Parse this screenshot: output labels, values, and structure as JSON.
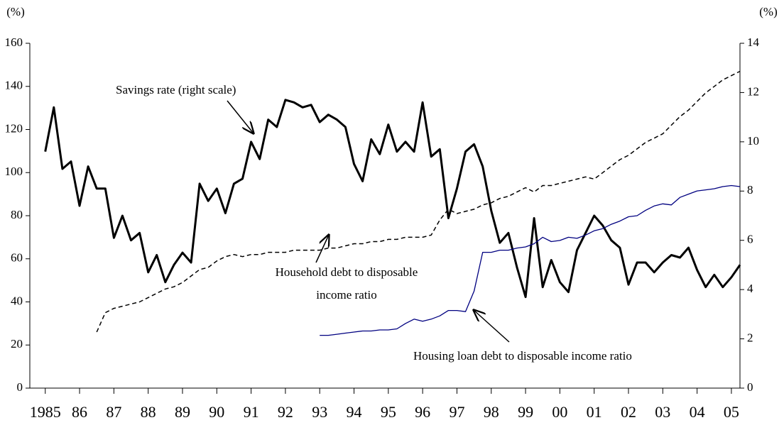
{
  "chart_data": {
    "type": "line",
    "y_label": "(%)",
    "y2_label": "(%)",
    "x": [
      1985,
      1985.25,
      1985.5,
      1985.75,
      1986,
      1986.25,
      1986.5,
      1986.75,
      1987,
      1987.25,
      1987.5,
      1987.75,
      1988,
      1988.25,
      1988.5,
      1988.75,
      1989,
      1989.25,
      1989.5,
      1989.75,
      1990,
      1990.25,
      1990.5,
      1990.75,
      1991,
      1991.25,
      1991.5,
      1991.75,
      1992,
      1992.25,
      1992.5,
      1992.75,
      1993,
      1993.25,
      1993.5,
      1993.75,
      1994,
      1994.25,
      1994.5,
      1994.75,
      1995,
      1995.25,
      1995.5,
      1995.75,
      1996,
      1996.25,
      1996.5,
      1996.75,
      1997,
      1997.25,
      1997.5,
      1997.75,
      1998,
      1998.25,
      1998.5,
      1998.75,
      1999,
      1999.25,
      1999.5,
      1999.75,
      2000,
      2000.25,
      2000.5,
      2000.75,
      2001,
      2001.25,
      2001.5,
      2001.75,
      2002,
      2002.25,
      2002.5,
      2002.75,
      2003,
      2003.25,
      2003.5,
      2003.75,
      2004,
      2004.25,
      2004.5,
      2004.75,
      2005,
      2005.25
    ],
    "series": [
      {
        "name": "Savings rate (right scale)",
        "color": "#000000",
        "axis": "y2",
        "style": "solid",
        "width": 3,
        "values": [
          9.6,
          11.4,
          8.9,
          9.2,
          7.4,
          9.0,
          8.1,
          8.1,
          6.1,
          7.0,
          6.0,
          6.3,
          4.7,
          5.4,
          4.3,
          5.0,
          5.5,
          5.1,
          8.3,
          7.6,
          8.1,
          7.1,
          8.3,
          8.5,
          10.0,
          9.3,
          10.9,
          10.6,
          11.7,
          11.6,
          11.4,
          11.5,
          10.8,
          11.1,
          10.9,
          10.6,
          9.1,
          8.4,
          10.1,
          9.5,
          10.7,
          9.6,
          10.0,
          9.6,
          11.6,
          9.4,
          9.7,
          6.9,
          8.1,
          9.6,
          9.9,
          9.0,
          7.2,
          5.9,
          6.3,
          4.9,
          3.7,
          6.9,
          4.1,
          5.2,
          4.3,
          3.9,
          5.6,
          6.3,
          7.0,
          6.6,
          6.0,
          5.7,
          4.2,
          5.1,
          5.1,
          4.7,
          5.1,
          5.4,
          5.3,
          5.7,
          4.8,
          4.1,
          4.6,
          4.1,
          4.5,
          5.0
        ]
      },
      {
        "name": "Household debt to disposable income ratio",
        "color": "#000000",
        "style": "dashed",
        "width": 1.5,
        "values": [
          null,
          null,
          null,
          null,
          null,
          null,
          26,
          35,
          37,
          38,
          39,
          40,
          42,
          44,
          46,
          47,
          49,
          52,
          55,
          56,
          59,
          61,
          62,
          61,
          62,
          62,
          63,
          63,
          63,
          64,
          64,
          64,
          64,
          65,
          65,
          66,
          67,
          67,
          68,
          68,
          69,
          69,
          70,
          70,
          70,
          71,
          78,
          83,
          81,
          82,
          83,
          85,
          86,
          88,
          89,
          91,
          93,
          91,
          94,
          94,
          95,
          96,
          97,
          98,
          97,
          100,
          103,
          106,
          108,
          111,
          114,
          116,
          118,
          122,
          126,
          129,
          133,
          137,
          140,
          143,
          145,
          147
        ]
      },
      {
        "name": "Housing loan debt to disposable income ratio",
        "color": "#000080",
        "style": "solid",
        "width": 1.3,
        "values": [
          null,
          null,
          null,
          null,
          null,
          null,
          null,
          null,
          null,
          null,
          null,
          null,
          null,
          null,
          null,
          null,
          null,
          null,
          null,
          null,
          null,
          null,
          null,
          null,
          null,
          null,
          null,
          null,
          null,
          null,
          null,
          null,
          24.5,
          24.5,
          25,
          25.5,
          26,
          26.5,
          26.5,
          27,
          27,
          27.5,
          30,
          32,
          31,
          32,
          33.5,
          36,
          36,
          35.5,
          45,
          63,
          63,
          64,
          64,
          65,
          65.5,
          67,
          70,
          68,
          68.5,
          70,
          69.5,
          71,
          73,
          74,
          76,
          77.5,
          79.5,
          80,
          82.5,
          84.5,
          85.5,
          85,
          88.5,
          90,
          91.5,
          92,
          92.5,
          93.5,
          94,
          93.5
        ]
      }
    ],
    "xlim": [
      1984.55,
      2005.25
    ],
    "xticks": [
      {
        "value": 1985,
        "label": "1985"
      },
      {
        "value": 1986,
        "label": "86"
      },
      {
        "value": 1987,
        "label": "87"
      },
      {
        "value": 1988,
        "label": "88"
      },
      {
        "value": 1989,
        "label": "89"
      },
      {
        "value": 1990,
        "label": "90"
      },
      {
        "value": 1991,
        "label": "91"
      },
      {
        "value": 1992,
        "label": "92"
      },
      {
        "value": 1993,
        "label": "93"
      },
      {
        "value": 1994,
        "label": "94"
      },
      {
        "value": 1995,
        "label": "95"
      },
      {
        "value": 1996,
        "label": "96"
      },
      {
        "value": 1997,
        "label": "97"
      },
      {
        "value": 1998,
        "label": "98"
      },
      {
        "value": 1999,
        "label": "99"
      },
      {
        "value": 2000,
        "label": "00"
      },
      {
        "value": 2001,
        "label": "01"
      },
      {
        "value": 2002,
        "label": "02"
      },
      {
        "value": 2003,
        "label": "03"
      },
      {
        "value": 2004,
        "label": "04"
      },
      {
        "value": 2005,
        "label": "05"
      }
    ],
    "ylim": [
      0,
      160
    ],
    "yticks": [
      0,
      20,
      40,
      60,
      80,
      100,
      120,
      140,
      160
    ],
    "y2lim": [
      0,
      14
    ],
    "y2ticks": [
      0,
      2,
      4,
      6,
      8,
      10,
      12,
      14
    ],
    "annotations": [
      "Savings rate (right scale)",
      "Household debt to disposable",
      "income ratio",
      "Housing loan debt to disposable income ratio"
    ]
  }
}
